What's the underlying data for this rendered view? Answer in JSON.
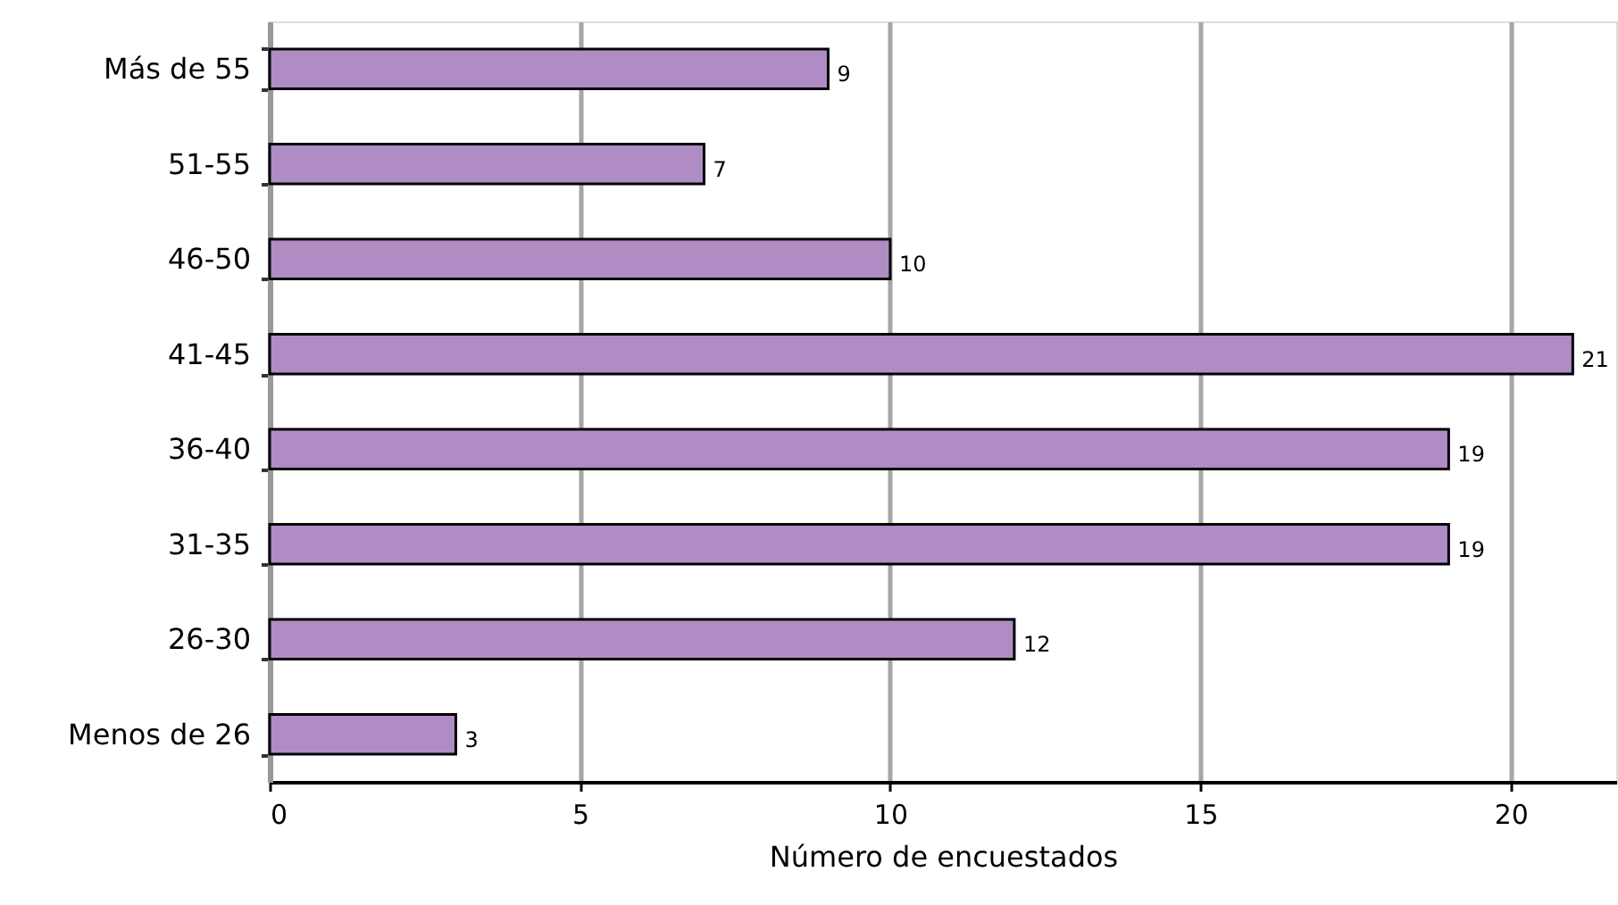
{
  "chart_data": {
    "type": "bar",
    "orientation": "horizontal",
    "categories": [
      "Más de 55",
      "51-55",
      "46-50",
      "41-45",
      "36-40",
      "31-35",
      "26-30",
      "Menos de 26"
    ],
    "values": [
      9,
      7,
      10,
      21,
      19,
      19,
      12,
      3
    ],
    "color": "#b08cc4",
    "xlabel": "Número de encuestados",
    "xlim": [
      0,
      21.7
    ],
    "xticks": [
      0,
      5,
      10,
      15,
      20
    ],
    "grid": "x",
    "data_labels": true
  }
}
